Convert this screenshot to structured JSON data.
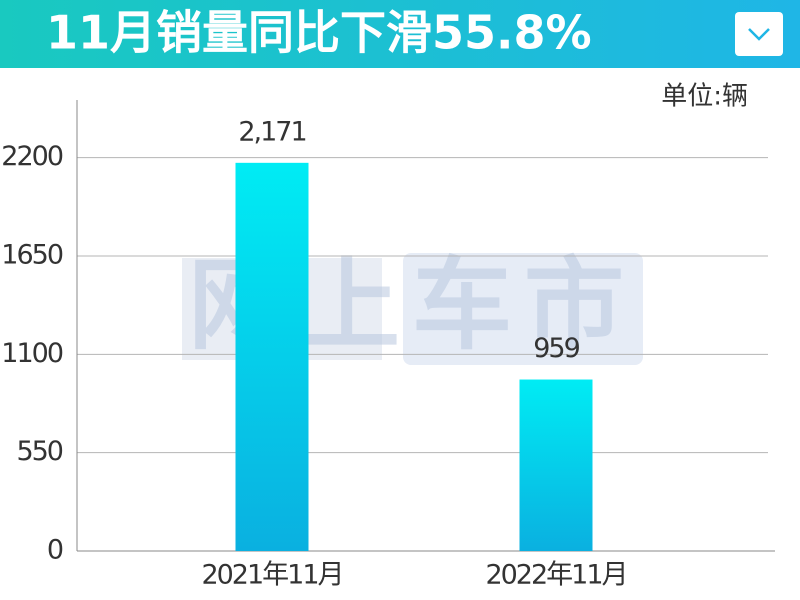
{
  "header": {
    "title": "11月销量同比下滑55.8%"
  },
  "watermark": "网上车市",
  "chart_data": {
    "type": "bar",
    "unit_label": "单位:辆",
    "categories": [
      "2021年11月",
      "2022年11月"
    ],
    "values": [
      2171,
      959
    ],
    "value_labels": [
      "2,171",
      "959"
    ],
    "ylim": [
      0,
      2500
    ],
    "yticks": [
      0,
      550,
      1100,
      1650,
      2200
    ],
    "grid": true
  }
}
